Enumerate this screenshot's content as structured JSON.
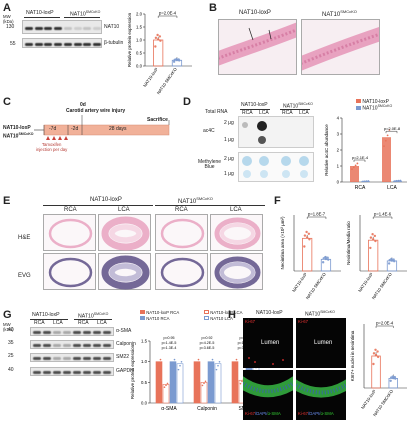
{
  "colors": {
    "loxp": "#e8735a",
    "cko": "#7b9ad0",
    "he_pink": "#e8a2c0",
    "evg_purple": "#5c4f86",
    "dot_blue": "#b6d8ec"
  },
  "panels": {
    "A": "A",
    "B": "B",
    "C": "C",
    "D": "D",
    "E": "E",
    "F": "F",
    "G": "G",
    "H": "H"
  },
  "groups": {
    "loxp": "NAT10-loxP",
    "cko": "NAT10",
    "cko_sup": "SMCcKO"
  },
  "A": {
    "mw_label": "MW\n(kDa)",
    "mw": [
      "130",
      "55"
    ],
    "blot_labels": [
      "NAT10",
      "β-tubulin"
    ],
    "pval": "p=2.0E-4",
    "ylabel": "Relative protein expression",
    "yticks": [
      "0.0",
      "0.5",
      "1.0",
      "1.5",
      "2.0"
    ],
    "chart_data": {
      "type": "bar",
      "categories": [
        "NAT10-loxP",
        "NAT10 SMCcKO"
      ],
      "values": [
        1.0,
        0.22
      ],
      "ylim": [
        0,
        2.0
      ]
    }
  },
  "B": {
    "loxp": "NAT10-loxP",
    "cko": "NAT10",
    "cko_sup": "SMCcKO"
  },
  "C": {
    "day0": "0d",
    "event0": "Carotid artery wire injury",
    "sac": "Sacrifice",
    "days": [
      "-7d",
      "-2d",
      "28 days"
    ],
    "tam": "Tamoxifen\ninjection per day",
    "mice": [
      "NAT10-loxP",
      "NAT10"
    ]
  },
  "D": {
    "top": [
      "Total RNA",
      "NAT10-loxP",
      "NAT10"
    ],
    "cols": [
      "RCA",
      "LCA",
      "RCA",
      "LCA"
    ],
    "rows": [
      "ac4C",
      "Methylene\nBlue"
    ],
    "amts": [
      "2 μg",
      "1 μg",
      "2 μg",
      "1 μg"
    ],
    "legend": [
      "NAT10-loxP",
      "NAT10"
    ],
    "pvals": [
      "p=2.1E-4",
      "p=2.0E-8"
    ],
    "ylabel": "Relative ac4C abundance",
    "yticks": [
      "0",
      "1",
      "2",
      "3",
      "4"
    ],
    "chart_data": {
      "type": "bar",
      "categories": [
        "RCA",
        "LCA"
      ],
      "series": [
        {
          "name": "NAT10-loxP",
          "values": [
            1.0,
            2.8
          ]
        },
        {
          "name": "NAT10 SMCcKO",
          "values": [
            0.05,
            0.08
          ]
        }
      ],
      "ylim": [
        0,
        4
      ]
    }
  },
  "E": {
    "groups": [
      "NAT10-loxP",
      "NAT10"
    ],
    "cols": [
      "RCA",
      "LCA",
      "RCA",
      "LCA"
    ],
    "rows": [
      "H&E",
      "EVG"
    ]
  },
  "F": {
    "pvals": [
      "p=1.8E-7",
      "p=1.4E-6"
    ],
    "ylabels": [
      "Neointima area (×10³ μm²)",
      "Neointima/Media ratio"
    ],
    "chart_data": [
      {
        "type": "bar",
        "categories": [
          "NAT10-loxP",
          "NAT10 SMCcKO"
        ],
        "values": [
          70,
          25
        ],
        "ylim": [
          0,
          120
        ]
      },
      {
        "type": "bar",
        "categories": [
          "NAT10-loxP",
          "NAT10 SMCcKO"
        ],
        "values": [
          0.55,
          0.18
        ],
        "ylim": [
          0,
          1.0
        ]
      }
    ]
  },
  "G": {
    "mw": [
      "40",
      "35",
      "25",
      "40"
    ],
    "hdr": [
      "NAT10-loxP",
      "NAT10"
    ],
    "cols": [
      "RCA",
      "LCA",
      "RCA",
      "LCA"
    ],
    "blot_labels": [
      "α-SMA",
      "Calponin",
      "SM22",
      "GAPDH"
    ],
    "legend": [
      "NAT10-loxP RCA",
      "NAT10-loxP LCA",
      "NAT10 RCA",
      "NAT10 LCA"
    ],
    "ylabel": "Relative protein expression",
    "yticks": [
      "0.0",
      "0.5",
      "1.0",
      "1.5"
    ],
    "pvals": [
      "p=0.95",
      "p=1.4E-5",
      "p=1.3E-4",
      "p=0.92",
      "p=4.2E-5",
      "p=3.6E-5",
      "p=0.08",
      "p=1.8E-5",
      "p=3.0E-4"
    ],
    "chart_data": {
      "type": "bar",
      "categories": [
        "α-SMA",
        "Calponin",
        "SM22"
      ],
      "series": [
        {
          "name": "NAT10-loxP RCA",
          "values": [
            1.0,
            1.0,
            1.0
          ]
        },
        {
          "name": "NAT10-loxP LCA",
          "values": [
            0.45,
            0.5,
            0.55
          ]
        },
        {
          "name": "NAT10 RCA",
          "values": [
            1.0,
            1.0,
            0.95
          ]
        },
        {
          "name": "NAT10 LCA",
          "values": [
            0.95,
            0.95,
            0.9
          ]
        }
      ],
      "ylim": [
        0,
        1.5
      ]
    }
  },
  "H": {
    "heads": [
      "NAT10-loxP",
      "NAT10"
    ],
    "lumen": "Lumen",
    "ki67": "Ki-67",
    "merge": [
      "Ki-67",
      "/DAPI/",
      "α-SMA"
    ],
    "pval": "p=2.0E-4",
    "ylabel": "KI67+ nuclei in neointima",
    "chart_data": {
      "type": "bar",
      "categories": [
        "NAT10-loxP",
        "NAT10 SMCcKO"
      ],
      "values": [
        40,
        12
      ],
      "ylim": [
        0,
        80
      ]
    }
  }
}
